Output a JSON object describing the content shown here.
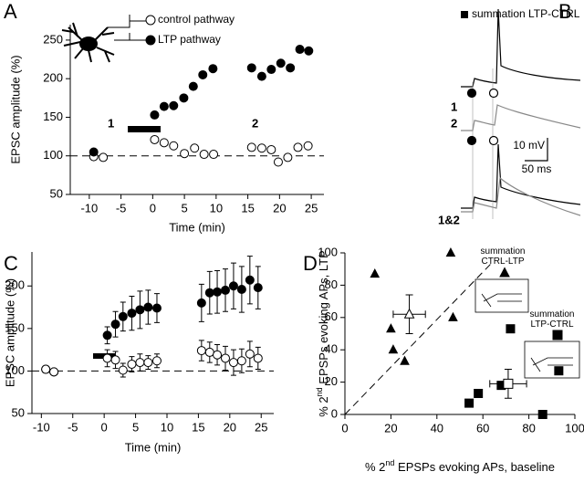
{
  "chart_data": [
    {
      "panel": "A",
      "type": "scatter",
      "xlabel": "Time (min)",
      "ylabel": "EPSC amplitude (%)",
      "xlim": [
        -13,
        27
      ],
      "ylim": [
        50,
        270
      ],
      "xticks": [
        -10,
        -5,
        0,
        5,
        10,
        15,
        20,
        25
      ],
      "yticks": [
        50,
        100,
        150,
        200,
        250
      ],
      "hline": 100,
      "annotations": [
        "1",
        "2"
      ],
      "series": [
        {
          "name": "control pathway",
          "marker": "circle",
          "filled": false,
          "color": "#000",
          "x": [
            -9.3,
            -7.8,
            0.3,
            1.8,
            3.3,
            5,
            6.6,
            8.1,
            9.6,
            15.6,
            17.2,
            18.7,
            19.8,
            21.3,
            22.9,
            24.5
          ],
          "values": [
            99,
            98,
            121,
            117,
            113,
            103,
            110,
            102,
            102,
            111,
            110,
            108,
            92,
            98,
            111,
            113
          ]
        },
        {
          "name": "LTP pathway",
          "marker": "circle",
          "filled": true,
          "color": "#000",
          "x": [
            -9.3,
            0.3,
            1.8,
            3.3,
            4.9,
            6.4,
            7.9,
            9.5,
            15.6,
            17.2,
            18.7,
            20.2,
            21.7,
            23.2,
            24.6
          ],
          "values": [
            105,
            153,
            164,
            165,
            175,
            190,
            205,
            213,
            214,
            203,
            212,
            220,
            214,
            238,
            236
          ]
        }
      ]
    },
    {
      "panel": "C",
      "type": "scatter",
      "xlabel": "Time (min)",
      "ylabel": "EPSC amplitude (%)",
      "xlim": [
        -11.5,
        27
      ],
      "ylim": [
        50,
        240
      ],
      "xticks": [
        -10,
        -5,
        0,
        5,
        10,
        15,
        20,
        25
      ],
      "yticks": [
        50,
        100,
        150,
        200
      ],
      "hline": 100,
      "series": [
        {
          "marker": "circle",
          "filled": true,
          "color": "#000",
          "x": [
            -9.3,
            -8,
            0.5,
            1.8,
            3,
            4.4,
            5.7,
            7,
            8.4,
            15.5,
            16.8,
            18,
            19.3,
            20.6,
            21.9,
            23.2,
            24.5
          ],
          "values": [
            102,
            99,
            142,
            155,
            164,
            168,
            172,
            175,
            174,
            180,
            192,
            193,
            195,
            200,
            196,
            207,
            198
          ],
          "errors": [
            3,
            3,
            10,
            15,
            17,
            20,
            22,
            20,
            17,
            22,
            25,
            25,
            25,
            27,
            27,
            28,
            25
          ]
        },
        {
          "marker": "circle",
          "filled": false,
          "color": "#000",
          "x": [
            -9.3,
            -8,
            0.5,
            1.8,
            3,
            4.4,
            5.7,
            7,
            8.4,
            15.5,
            16.8,
            18,
            19.3,
            20.6,
            21.9,
            23.2,
            24.5
          ],
          "values": [
            102,
            99,
            115,
            113,
            101,
            108,
            110,
            110,
            112,
            124,
            122,
            119,
            115,
            110,
            112,
            120,
            115
          ],
          "errors": [
            4,
            3,
            10,
            10,
            8,
            9,
            10,
            8,
            8,
            12,
            12,
            12,
            14,
            15,
            14,
            15,
            13
          ]
        }
      ]
    },
    {
      "panel": "D",
      "type": "scatter",
      "xlabel": [
        "% 2",
        "nd",
        " EPSPs evoking APs, baseline"
      ],
      "ylabel": [
        "% 2",
        "nd",
        " EPSPs evoking APs, LTP"
      ],
      "xlim": [
        0,
        100
      ],
      "ylim": [
        0,
        100
      ],
      "xticks": [
        0,
        20,
        40,
        60,
        80,
        100
      ],
      "yticks": [
        0,
        20,
        40,
        60,
        80,
        100
      ],
      "refline": {
        "x": [
          0,
          64
        ],
        "y": [
          0,
          94
        ]
      },
      "series": [
        {
          "name": "summation CTRL-LTP",
          "marker": "triangle",
          "filled": true,
          "color": "#000",
          "x": [
            13,
            20,
            21,
            26,
            46,
            47
          ],
          "values": [
            87,
            53,
            40,
            33,
            100,
            60
          ],
          "mean": {
            "x": 28,
            "y": 62,
            "xerr": 7,
            "yerr": 12
          }
        },
        {
          "name": "summation LTP-CTRL",
          "marker": "square",
          "filled": true,
          "color": "#000",
          "x": [
            54,
            58,
            68,
            72,
            86,
            93
          ],
          "values": [
            7,
            13,
            18,
            53,
            0,
            27
          ],
          "mean": {
            "x": 71,
            "y": 19,
            "xerr": 8,
            "yerr": 9
          }
        }
      ]
    }
  ],
  "traces": {
    "panel": "B",
    "legend": "summation LTP-CTRL",
    "labels": [
      "1",
      "2",
      "1&2"
    ],
    "scale_y": "10 mV",
    "scale_x": "50 ms"
  }
}
